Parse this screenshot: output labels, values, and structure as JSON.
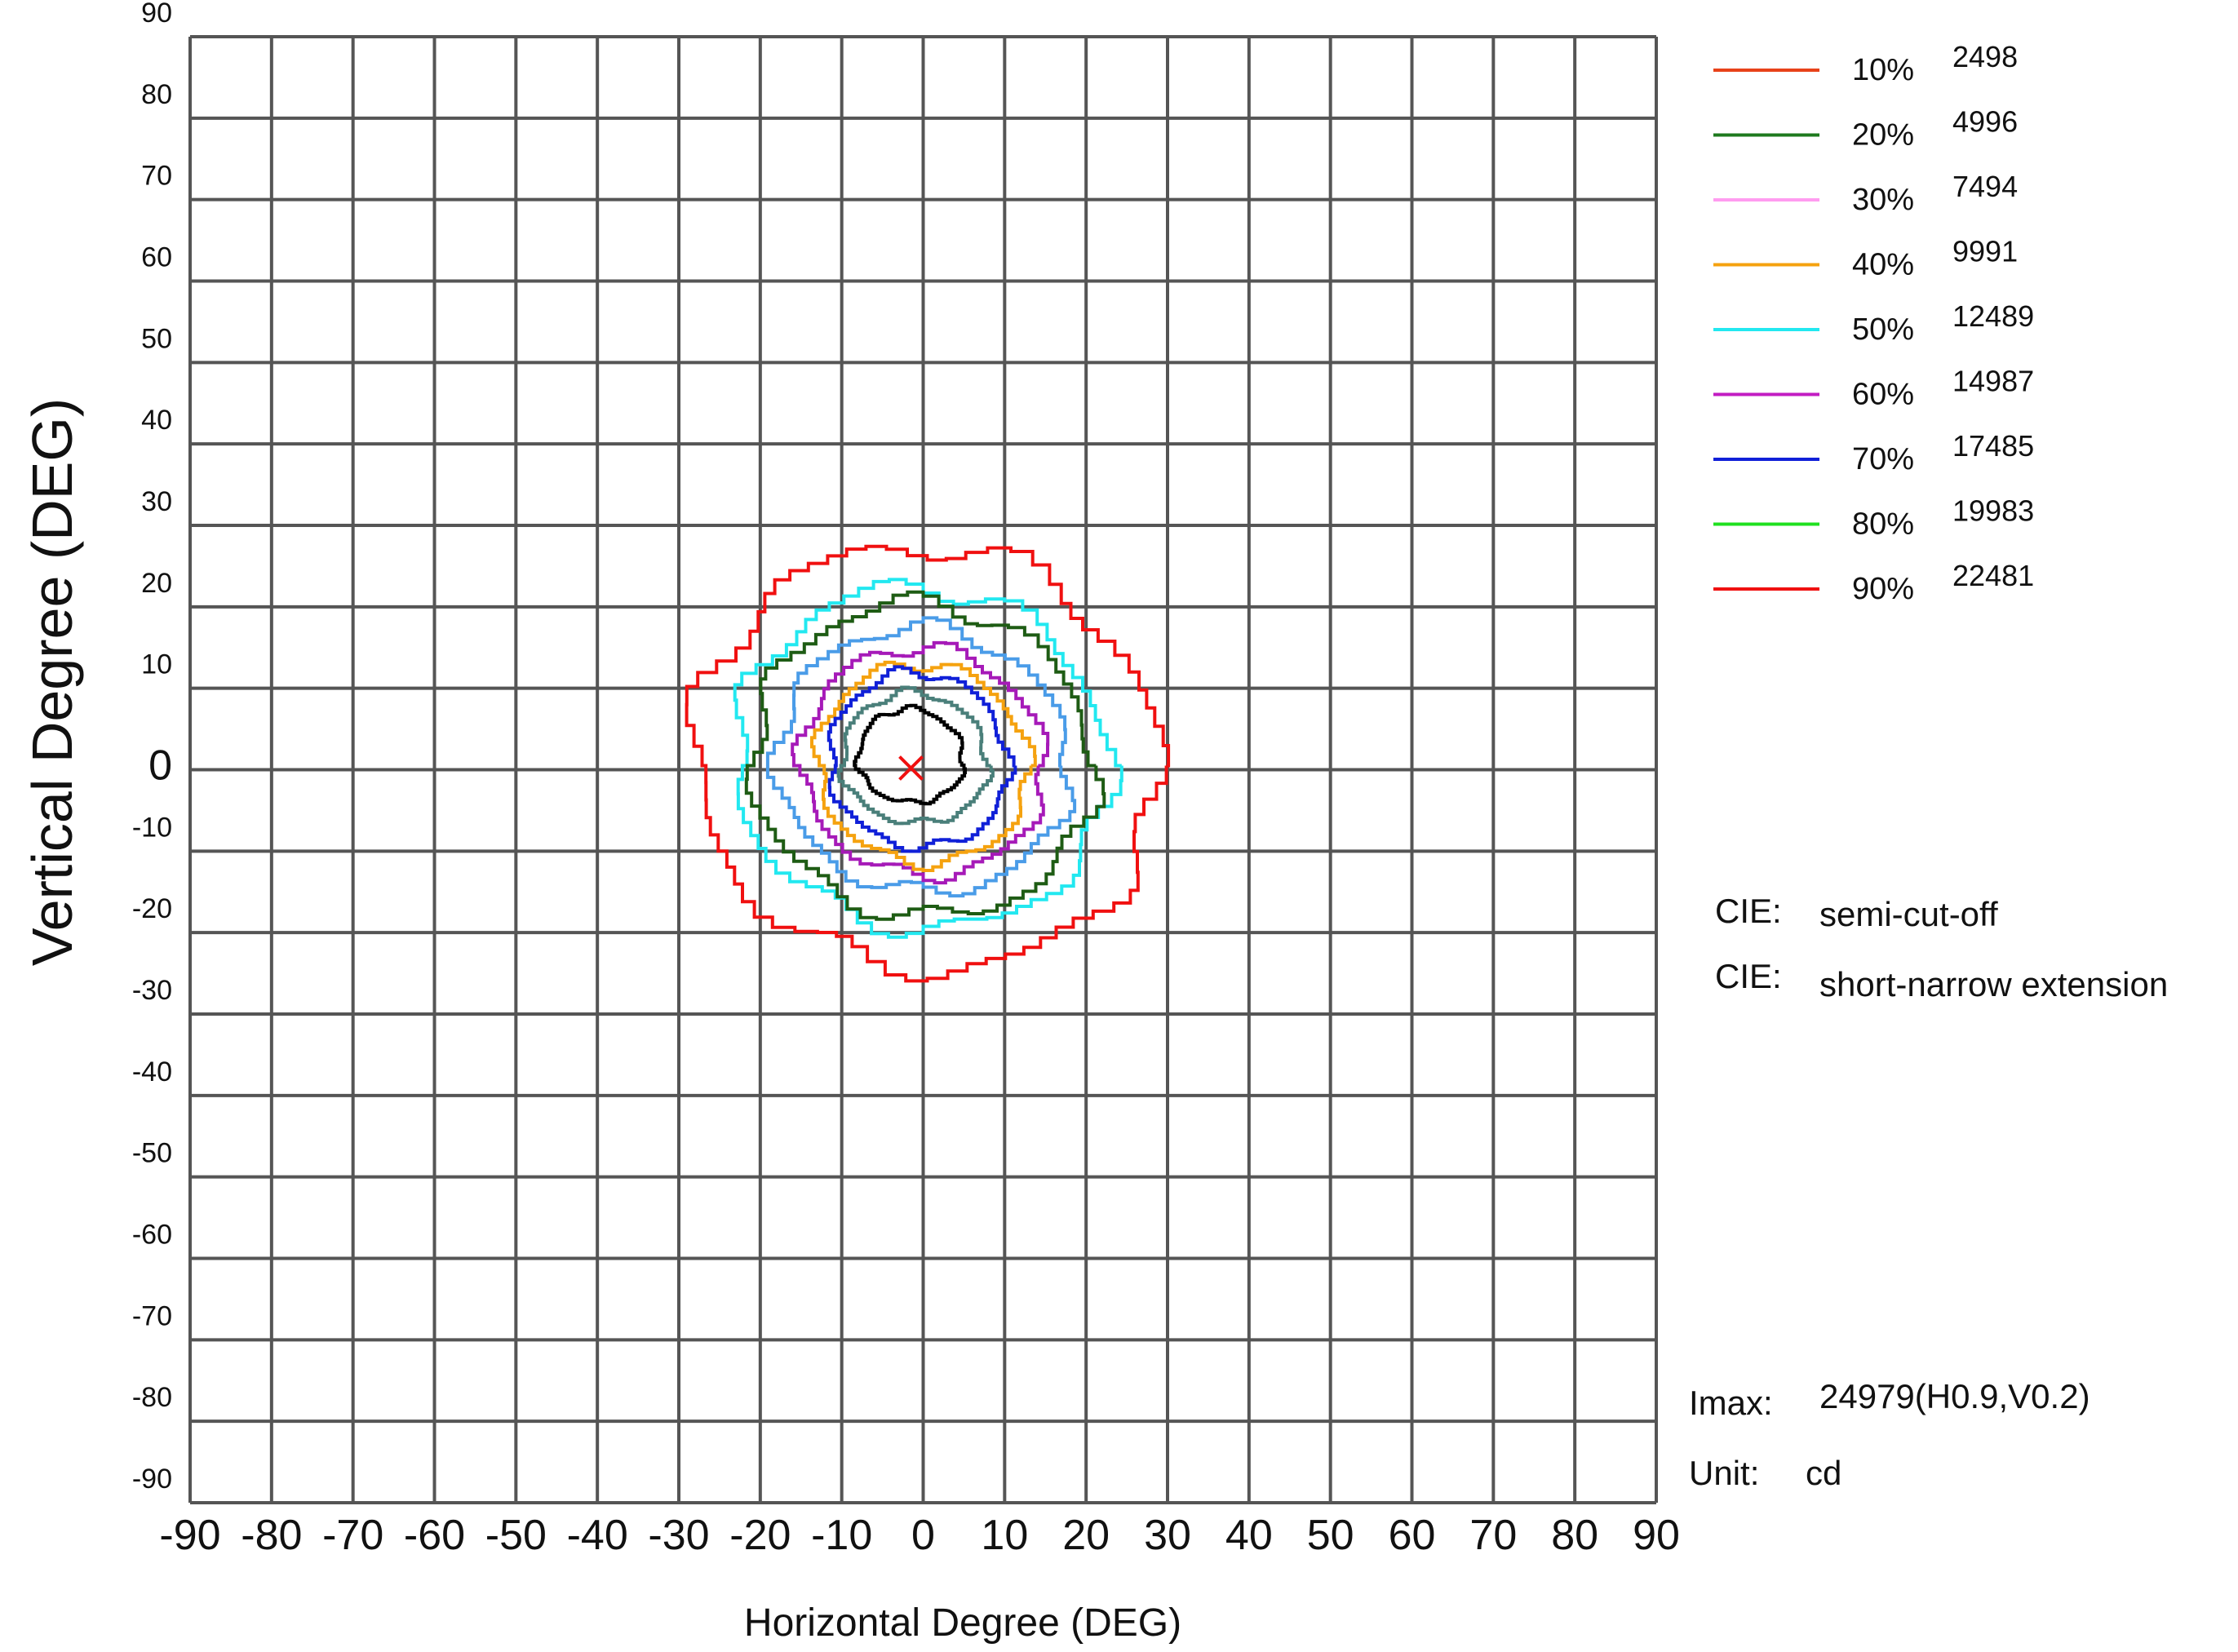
{
  "chart_data": {
    "type": "isocandela-contour",
    "xlabel": "Horizontal  Degree (DEG)",
    "ylabel": "Vertical  Degree (DEG)",
    "xlim": [
      -90,
      90
    ],
    "ylim": [
      -90,
      90
    ],
    "x_ticks": [
      "-90",
      "-80",
      "-70",
      "-60",
      "-50",
      "-40",
      "-30",
      "-20",
      "-10",
      "0",
      "10",
      "20",
      "30",
      "40",
      "50",
      "60",
      "70",
      "80",
      "90"
    ],
    "x_tick_text": [
      "-90",
      "-80",
      "-70",
      "-60",
      "-50",
      "-40",
      "-30",
      "-20",
      "-10",
      "0",
      "10",
      "20",
      "30",
      "40",
      "50",
      "60",
      "70",
      "80",
      "90"
    ],
    "y_ticks": [
      "90",
      "80",
      "70",
      "60",
      "50",
      "40",
      "30",
      "20",
      "10",
      "0",
      "-10",
      "-20",
      "-30",
      "-40",
      "-50",
      "-60",
      "-70",
      "-80",
      "-90"
    ],
    "grid": true,
    "legend_position": "top-right",
    "legend": [
      {
        "percent": "10%",
        "value": "2498",
        "color": "#e8421a"
      },
      {
        "percent": "20%",
        "value": "4996",
        "color": "#1e7a1e"
      },
      {
        "percent": "30%",
        "value": "7494",
        "color": "#ff9cf0"
      },
      {
        "percent": "40%",
        "value": "9991",
        "color": "#f5a20f"
      },
      {
        "percent": "50%",
        "value": "12489",
        "color": "#22e8f0"
      },
      {
        "percent": "60%",
        "value": "14987",
        "color": "#c21cc2"
      },
      {
        "percent": "70%",
        "value": "17485",
        "color": "#1020d8"
      },
      {
        "percent": "80%",
        "value": "19983",
        "color": "#20e020"
      },
      {
        "percent": "90%",
        "value": "22481",
        "color": "#f01010"
      }
    ],
    "contours": [
      {
        "color": "#f01010",
        "cx": 0.5,
        "cy": 0.5,
        "rx": 28.5,
        "ry_top": 27,
        "ry_bottom": 25
      },
      {
        "color": "#22e8f0",
        "cx": 0.0,
        "cy": 0.5,
        "rx": 23,
        "ry_top": 22,
        "ry_bottom": 20
      },
      {
        "color": "#1e5c14",
        "cx": 0.0,
        "cy": 0.5,
        "rx": 21,
        "ry_top": 20,
        "ry_bottom": 18.5
      },
      {
        "color": "#4a9ce8",
        "cx": 0.0,
        "cy": 0.5,
        "rx": 18,
        "ry_top": 17,
        "ry_bottom": 15.5
      },
      {
        "color": "#a61ab8",
        "cx": 0.0,
        "cy": 0.5,
        "rx": 15,
        "ry_top": 14.5,
        "ry_bottom": 13.5
      },
      {
        "color": "#f5a20f",
        "cx": 0.0,
        "cy": 0.5,
        "rx": 13,
        "ry_top": 12.5,
        "ry_bottom": 12
      },
      {
        "color": "#1020d8",
        "cx": -0.5,
        "cy": 0.5,
        "rx": 11,
        "ry_top": 11.5,
        "ry_bottom": 10
      },
      {
        "color": "#4a7f7a",
        "cx": -1.0,
        "cy": 0.5,
        "rx": 9,
        "ry_top": 9,
        "ry_bottom": 7
      },
      {
        "color": "#000000",
        "cx": -1.5,
        "cy": 1.0,
        "rx": 6.5,
        "ry_top": 6.5,
        "ry_bottom": 5
      }
    ],
    "max_point": {
      "h": 0.9,
      "v": 0.2,
      "color": "#f01010"
    }
  },
  "info": {
    "cie_label_1": "CIE:",
    "cie_value_1": "semi-cut-off",
    "cie_label_2": "CIE:",
    "cie_value_2": "short-narrow extension",
    "imax_label": "Imax:",
    "imax_value": "24979(H0.9,V0.2)",
    "unit_label": "Unit:",
    "unit_value": "cd"
  }
}
